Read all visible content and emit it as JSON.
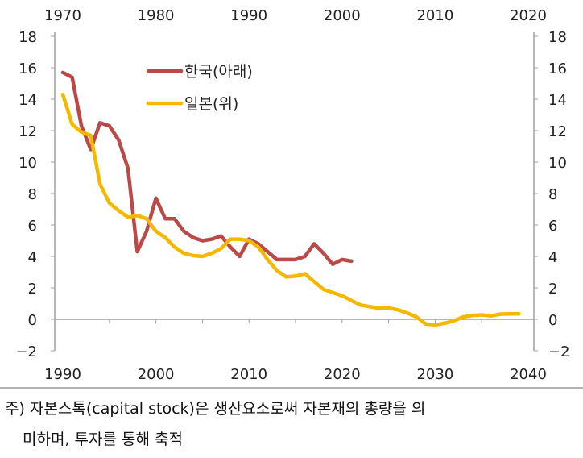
{
  "chart_data": {
    "type": "line",
    "title": "",
    "ylim": [
      -2,
      18
    ],
    "yticks": [
      -2,
      0,
      2,
      4,
      6,
      8,
      10,
      12,
      14,
      16,
      18
    ],
    "x_bottom": {
      "range": [
        1990,
        2040
      ],
      "ticks": [
        1990,
        2000,
        2010,
        2020,
        2030,
        2040
      ]
    },
    "x_top": {
      "range": [
        1970,
        2020
      ],
      "ticks": [
        1970,
        1980,
        1990,
        2000,
        2010,
        2020
      ]
    },
    "legend_placement": "top-left",
    "series": [
      {
        "name": "한국(아래)",
        "axis": "bottom",
        "color": "#b94a48",
        "x": [
          1990,
          1991,
          1992,
          1993,
          1994,
          1995,
          1996,
          1997,
          1998,
          1999,
          2000,
          2001,
          2002,
          2003,
          2004,
          2005,
          2006,
          2007,
          2008,
          2009,
          2010,
          2011,
          2012,
          2013,
          2014,
          2015,
          2016,
          2017,
          2018,
          2019,
          2020,
          2021
        ],
        "values": [
          15.7,
          15.4,
          12.3,
          10.8,
          12.5,
          12.3,
          11.4,
          9.6,
          4.3,
          5.6,
          7.7,
          6.4,
          6.4,
          5.6,
          5.2,
          5.0,
          5.1,
          5.3,
          4.6,
          4.0,
          5.1,
          4.8,
          4.3,
          3.8,
          3.8,
          3.8,
          4.0,
          4.8,
          4.2,
          3.5,
          3.8,
          3.7
        ]
      },
      {
        "name": "일본(위)",
        "axis": "top",
        "color": "#f5b800",
        "x": [
          1970,
          1971,
          1972,
          1973,
          1974,
          1975,
          1976,
          1977,
          1978,
          1979,
          1980,
          1981,
          1982,
          1983,
          1984,
          1985,
          1986,
          1987,
          1988,
          1989,
          1990,
          1991,
          1992,
          1993,
          1994,
          1995,
          1996,
          1997,
          1998,
          1999,
          2000,
          2001,
          2002,
          2003,
          2004,
          2005,
          2006,
          2007,
          2008,
          2009,
          2010,
          2011,
          2012,
          2013,
          2014,
          2015,
          2016,
          2017,
          2018,
          2019
        ],
        "values": [
          14.3,
          12.4,
          11.9,
          11.7,
          8.6,
          7.4,
          6.9,
          6.5,
          6.6,
          6.4,
          5.6,
          5.2,
          4.6,
          4.2,
          4.05,
          4.0,
          4.2,
          4.5,
          5.1,
          5.1,
          5.0,
          4.6,
          3.8,
          3.1,
          2.7,
          2.75,
          2.9,
          2.4,
          1.9,
          1.7,
          1.5,
          1.2,
          0.9,
          0.8,
          0.7,
          0.72,
          0.6,
          0.4,
          0.15,
          -0.3,
          -0.35,
          -0.25,
          -0.1,
          0.15,
          0.25,
          0.28,
          0.22,
          0.33,
          0.35,
          0.35
        ]
      }
    ]
  },
  "note": {
    "line1": "주) 자본스톡(capital stock)은 생산요소로써 자본재의 총량을 의",
    "line2": "미하며, 투자를 통해 축적"
  }
}
